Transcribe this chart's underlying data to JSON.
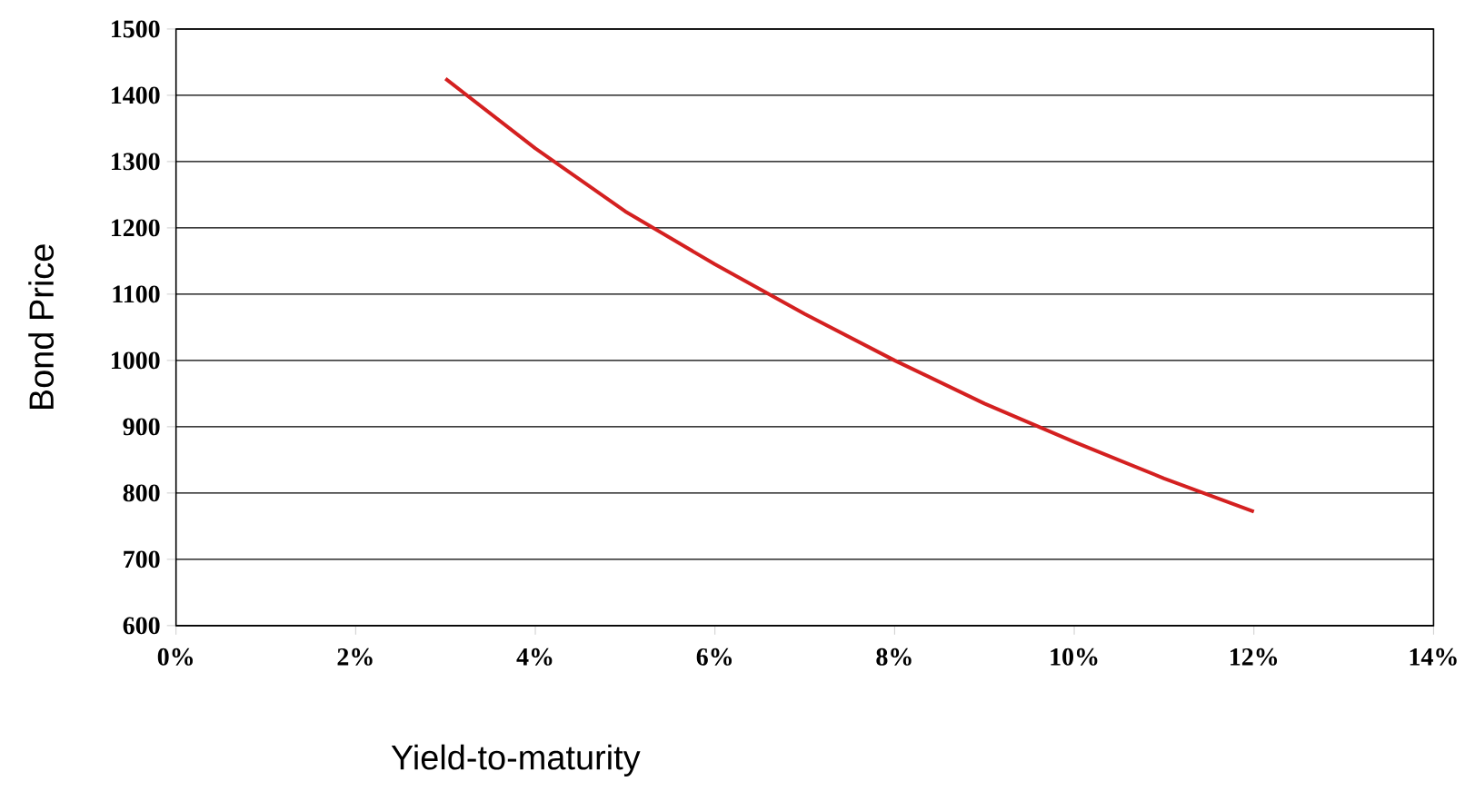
{
  "chart_data": {
    "type": "line",
    "xlabel": "Yield-to-maturity",
    "ylabel": "Bond Price",
    "x": [
      3,
      4,
      5,
      6,
      7,
      8,
      9,
      10,
      11,
      12
    ],
    "series": [
      {
        "color": "#d42020",
        "values": [
          1425,
          1320,
          1225,
          1145,
          1070,
          1000,
          935,
          877,
          822,
          772
        ]
      }
    ],
    "xlim": [
      0,
      14
    ],
    "xticks": [
      {
        "value": 0,
        "label": "0%"
      },
      {
        "value": 2,
        "label": "2%"
      },
      {
        "value": 4,
        "label": "4%"
      },
      {
        "value": 6,
        "label": "6%"
      },
      {
        "value": 8,
        "label": "8%"
      },
      {
        "value": 10,
        "label": "10%"
      },
      {
        "value": 12,
        "label": "12%"
      },
      {
        "value": 14,
        "label": "14%"
      }
    ],
    "ylim": [
      600,
      1500
    ],
    "yticks": [
      600,
      700,
      800,
      900,
      1000,
      1100,
      1200,
      1300,
      1400,
      1500
    ],
    "grid": "y",
    "marker": "none",
    "line_style": "solid"
  }
}
